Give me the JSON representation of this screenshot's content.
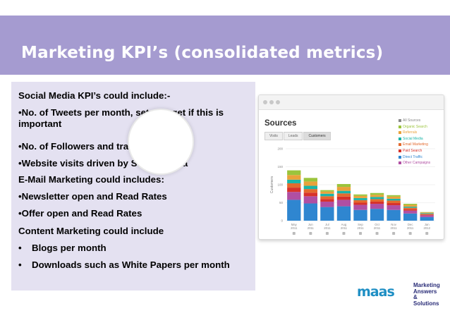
{
  "slide": {
    "title": "Marketing KPI’s (consolidated metrics)",
    "colors": {
      "title_band": "#a59bd0",
      "content_box": "#e4e1f1"
    }
  },
  "content": {
    "lines": [
      "Social Media KPI’s could include:-",
      "•No. of Tweets per month, set a target if this is important",
      "•No. of Followers and traction",
      "•Website visits driven by Social Media",
      "E-Mail Marketing could includes:",
      "•Newsletter open and Read Rates",
      "•Offer open and Read Rates",
      "Content Marketing could include"
    ],
    "dot_bullets": [
      {
        "bullet": "•",
        "text": "Blogs per month"
      },
      {
        "bullet": "•",
        "text": "Downloads such as White Papers per month"
      }
    ]
  },
  "screenshot": {
    "heading": "Sources",
    "tabs": [
      "Visits",
      "Leads",
      "Customers"
    ],
    "active_tab": "Customers",
    "legend": [
      {
        "label": "All Sources",
        "color": "#888888"
      },
      {
        "label": "Organic Search",
        "color": "#9bc43c"
      },
      {
        "label": "Referrals",
        "color": "#e9a23b"
      },
      {
        "label": "Social Media",
        "color": "#1ab5a8"
      },
      {
        "label": "Email Marketing",
        "color": "#e36a2e"
      },
      {
        "label": "Paid Search",
        "color": "#d8322a"
      },
      {
        "label": "Direct Traffic",
        "color": "#2f86d0"
      },
      {
        "label": "Other Campaigns",
        "color": "#b04fa3"
      }
    ]
  },
  "chart_data": {
    "type": "bar",
    "title": "",
    "ylabel": "Customers",
    "ylim": [
      0,
      200
    ],
    "yticks": [
      0,
      50,
      100,
      150,
      200
    ],
    "categories": [
      "May 2011",
      "Jun 2011",
      "Jul 2011",
      "Aug 2011",
      "Sep 2011",
      "Oct 2011",
      "Nov 2011",
      "Dec 2011",
      "Jan 2012"
    ],
    "series": [
      {
        "name": "Direct Traffic",
        "color": "#2f86d0",
        "values": [
          58,
          48,
          38,
          40,
          30,
          33,
          30,
          20,
          10
        ]
      },
      {
        "name": "Other Campaigns",
        "color": "#b04fa3",
        "values": [
          22,
          20,
          15,
          18,
          14,
          14,
          13,
          8,
          5
        ]
      },
      {
        "name": "Paid Search",
        "color": "#d8322a",
        "values": [
          12,
          10,
          7,
          9,
          6,
          6,
          6,
          4,
          2
        ]
      },
      {
        "name": "Email Marketing",
        "color": "#e36a2e",
        "values": [
          12,
          10,
          8,
          9,
          7,
          7,
          7,
          4,
          2
        ]
      },
      {
        "name": "Social Media",
        "color": "#1ab5a8",
        "values": [
          10,
          9,
          7,
          7,
          6,
          6,
          5,
          3,
          2
        ]
      },
      {
        "name": "Referrals",
        "color": "#e9a23b",
        "values": [
          13,
          12,
          6,
          11,
          6,
          6,
          6,
          5,
          2
        ]
      },
      {
        "name": "Organic Search",
        "color": "#9bc43c",
        "values": [
          13,
          10,
          4,
          8,
          4,
          5,
          4,
          3,
          1
        ]
      }
    ]
  },
  "logo": {
    "mark": "maas",
    "lines": [
      "Marketing",
      "Answers",
      "& Solutions"
    ],
    "color_mark": "#1f8fc4",
    "color_text": "#2a2d78"
  }
}
